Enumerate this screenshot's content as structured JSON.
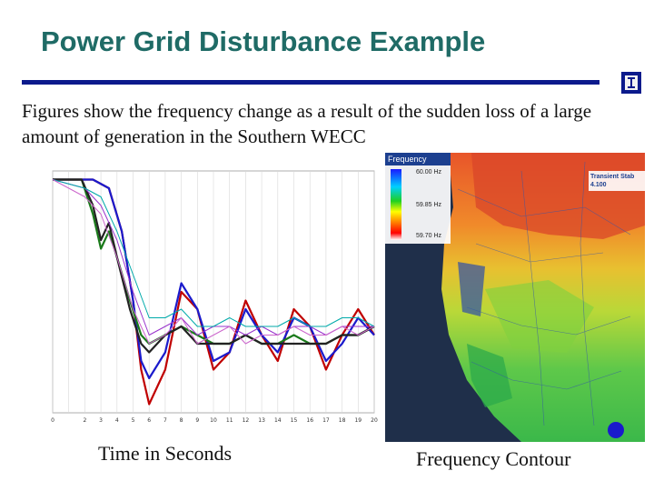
{
  "slide": {
    "title": "Power Grid Disturbance Example",
    "body": "Figures show the frequency change as a result of the sudden loss of a large amount of generation in the Southern WECC",
    "caption_left": "Time in Seconds",
    "caption_right": "Frequency Contour"
  },
  "colors": {
    "title": "#1f6b66",
    "rule": "#0b1a8c"
  },
  "icons": {
    "logo": "university-i-logo-icon"
  },
  "chart_data": {
    "type": "line",
    "x_ticks": [
      "0",
      "",
      "2",
      "3",
      "4",
      "5",
      "6",
      "7",
      "8",
      "9",
      "10",
      "11",
      "12",
      "13",
      "14",
      "15",
      "16",
      "17",
      "18",
      "19",
      "20"
    ],
    "xlim": [
      0,
      20
    ],
    "ylim": [
      59.72,
      60.0
    ],
    "grid": true,
    "series": [
      {
        "color": "#c00000",
        "x": [
          0,
          2.5,
          3.5,
          4.3,
          5,
          5.5,
          6,
          7,
          8,
          9,
          10,
          11,
          12,
          13,
          14,
          15,
          16,
          17,
          18,
          19,
          20
        ],
        "y": [
          59.99,
          59.99,
          59.98,
          59.93,
          59.85,
          59.77,
          59.73,
          59.77,
          59.86,
          59.84,
          59.77,
          59.79,
          59.85,
          59.81,
          59.78,
          59.84,
          59.82,
          59.77,
          59.81,
          59.84,
          59.81
        ]
      },
      {
        "color": "#1a1acc",
        "x": [
          0,
          2.5,
          3.5,
          4.3,
          5,
          5.5,
          6,
          7,
          8,
          9,
          10,
          11,
          12,
          13,
          14,
          15,
          16,
          17,
          18,
          19,
          20
        ],
        "y": [
          59.99,
          59.99,
          59.98,
          59.93,
          59.85,
          59.78,
          59.76,
          59.79,
          59.87,
          59.84,
          59.78,
          59.79,
          59.84,
          59.81,
          59.79,
          59.83,
          59.82,
          59.78,
          59.8,
          59.83,
          59.81
        ]
      },
      {
        "color": "#1a7a1a",
        "x": [
          0,
          1.8,
          2.5,
          3,
          3.5,
          4,
          4.8,
          5.5,
          6,
          7,
          8,
          9,
          10,
          11,
          12,
          13,
          14,
          15,
          16,
          17,
          18,
          19,
          20
        ],
        "y": [
          59.99,
          59.99,
          59.95,
          59.91,
          59.93,
          59.9,
          59.85,
          59.81,
          59.8,
          59.81,
          59.82,
          59.81,
          59.8,
          59.8,
          59.81,
          59.8,
          59.8,
          59.81,
          59.8,
          59.8,
          59.81,
          59.81,
          59.82
        ]
      },
      {
        "color": "#222222",
        "x": [
          0,
          1.8,
          2.5,
          3,
          3.5,
          4,
          4.8,
          5.5,
          6,
          7,
          8,
          9,
          10,
          11,
          12,
          13,
          14,
          15,
          16,
          17,
          18,
          19,
          20
        ],
        "y": [
          59.99,
          59.99,
          59.96,
          59.92,
          59.94,
          59.9,
          59.84,
          59.8,
          59.79,
          59.81,
          59.82,
          59.8,
          59.8,
          59.8,
          59.81,
          59.8,
          59.8,
          59.8,
          59.8,
          59.8,
          59.81,
          59.81,
          59.82
        ]
      },
      {
        "color": "#9933cc",
        "x": [
          0,
          2,
          3,
          4,
          5,
          6,
          7,
          8,
          9,
          10,
          11,
          12,
          13,
          14,
          15,
          16,
          17,
          18,
          19,
          20
        ],
        "y": [
          59.99,
          59.98,
          59.96,
          59.92,
          59.86,
          59.81,
          59.82,
          59.83,
          59.81,
          59.82,
          59.82,
          59.81,
          59.82,
          59.81,
          59.82,
          59.82,
          59.81,
          59.82,
          59.82,
          59.82
        ]
      },
      {
        "color": "#00aaaa",
        "x": [
          0,
          2,
          3,
          4,
          5,
          6,
          7,
          8,
          9,
          10,
          11,
          12,
          13,
          14,
          15,
          16,
          17,
          18,
          19,
          20
        ],
        "y": [
          59.99,
          59.98,
          59.97,
          59.93,
          59.88,
          59.83,
          59.83,
          59.84,
          59.82,
          59.82,
          59.83,
          59.82,
          59.82,
          59.82,
          59.83,
          59.82,
          59.82,
          59.83,
          59.83,
          59.82
        ]
      },
      {
        "color": "#cc66cc",
        "x": [
          0,
          2,
          3,
          4,
          5,
          6,
          7,
          8,
          9,
          10,
          11,
          12,
          13,
          14,
          15,
          16,
          17,
          18,
          19,
          20
        ],
        "y": [
          59.99,
          59.97,
          59.95,
          59.9,
          59.84,
          59.8,
          59.81,
          59.83,
          59.8,
          59.81,
          59.82,
          59.8,
          59.81,
          59.81,
          59.82,
          59.81,
          59.81,
          59.82,
          59.81,
          59.82
        ]
      }
    ]
  },
  "map": {
    "legend_title": "Frequency",
    "legend_labels": [
      "60.00 Hz",
      "59.85 Hz",
      "59.70 Hz"
    ],
    "overlay_label": "Transient Stab 4.100"
  }
}
